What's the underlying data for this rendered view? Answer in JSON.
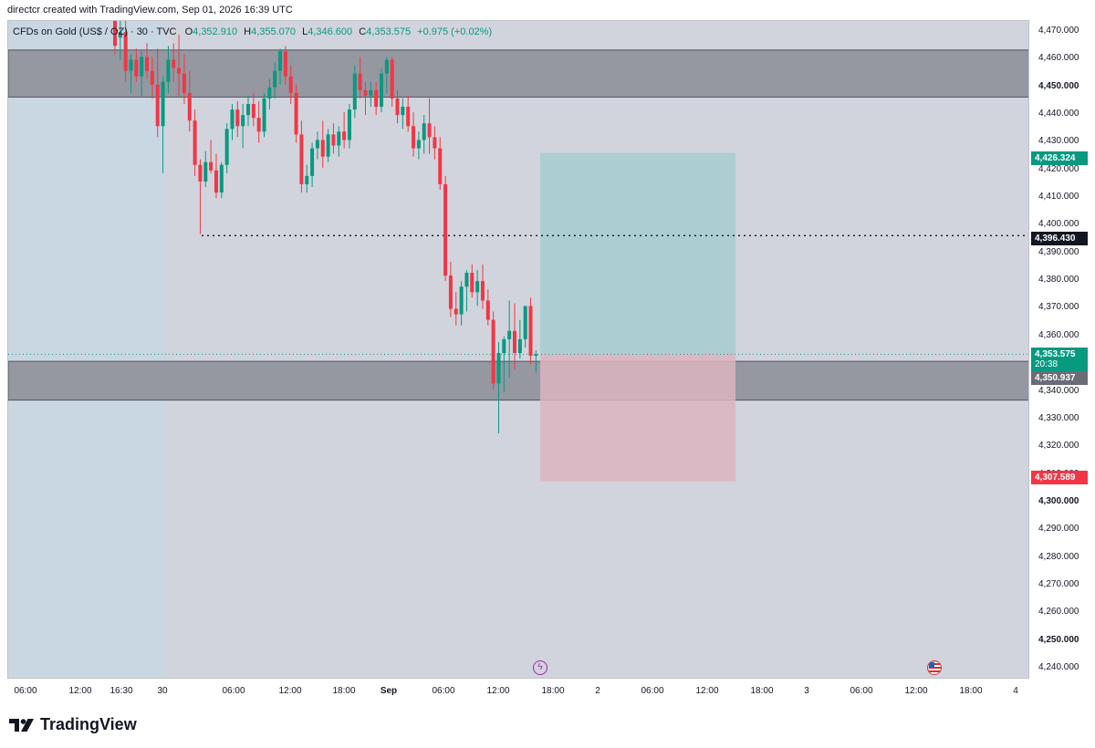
{
  "header": {
    "credit": "directcr created with TradingView.com, Sep 01, 2026 16:39 UTC"
  },
  "legend": {
    "symbol": "CFDs on Gold (US$ / OZ) · 30 · TVC",
    "open_label": "O",
    "open": "4,352.910",
    "high_label": "H",
    "high": "4,355.070",
    "low_label": "L",
    "low": "4,346.600",
    "close_label": "C",
    "close": "4,353.575",
    "change": "+0.975 (+0.02%)"
  },
  "price_axis": {
    "levels": [
      "4,470.000",
      "4,460.000",
      "4,450.000",
      "4,440.000",
      "4,430.000",
      "4,420.000",
      "4,410.000",
      "4,400.000",
      "4,390.000",
      "4,380.000",
      "4,370.000",
      "4,360.000",
      "4,340.000",
      "4,330.000",
      "4,320.000",
      "4,310.000",
      "4,300.000",
      "4,290.000",
      "4,280.000",
      "4,270.000",
      "4,260.000",
      "4,250.000",
      "4,240.000"
    ],
    "bold_levels": [
      "4,450.000",
      "4,300.000",
      "4,250.000"
    ]
  },
  "tags": {
    "target": "4,426.324",
    "dotted_level": "4,396.430",
    "current_price": "4,353.575",
    "countdown": "20:38",
    "zone_price": "4,350.937",
    "stop": "4,307.589"
  },
  "time_axis": {
    "labels": [
      "06:00",
      "12:00",
      "16:30",
      "30",
      "06:00",
      "12:00",
      "18:00",
      "Sep",
      "06:00",
      "12:00",
      "18:00",
      "2",
      "06:00",
      "12:00",
      "18:00",
      "3",
      "06:00",
      "12:00",
      "18:00",
      "4"
    ],
    "bold_labels": [
      "Sep"
    ]
  },
  "colors": {
    "up": "#089981",
    "down": "#f23645",
    "zone_fill": "#9598a1",
    "target_fill": "#a6cdd0",
    "stop_fill": "#dcb4bf",
    "session_shade": "#c9d7e2",
    "chart_bg": "#d1d4dc"
  },
  "events": {
    "flash_icon": "lightning-bolt-icon",
    "flag_icon": "us-flag-icon"
  },
  "brand": {
    "logo_text": "TradingView",
    "logo_icon": "tv-logo-icon"
  },
  "chart_data": {
    "type": "candlestick",
    "ylim": [
      4236,
      4474
    ],
    "x_unit": "30-minute bars",
    "reference_levels": {
      "supply_zone": [
        4446.5,
        4463.5
      ],
      "demand_zone": [
        4337,
        4351
      ],
      "target": 4426.324,
      "stop": 4307.589,
      "entry": 4353.575,
      "dotted_line": 4396.43
    },
    "candles": [
      {
        "o": 4475,
        "h": 4478,
        "l": 4462,
        "c": 4465
      },
      {
        "o": 4468,
        "h": 4476,
        "l": 4460,
        "c": 4470
      },
      {
        "o": 4470,
        "h": 4474,
        "l": 4452,
        "c": 4456
      },
      {
        "o": 4456,
        "h": 4462,
        "l": 4448,
        "c": 4460
      },
      {
        "o": 4460,
        "h": 4464,
        "l": 4452,
        "c": 4454
      },
      {
        "o": 4454,
        "h": 4463,
        "l": 4447,
        "c": 4461
      },
      {
        "o": 4461,
        "h": 4466,
        "l": 4453,
        "c": 4456
      },
      {
        "o": 4456,
        "h": 4461,
        "l": 4446,
        "c": 4451
      },
      {
        "o": 4451,
        "h": 4464,
        "l": 4432,
        "c": 4436
      },
      {
        "o": 4436,
        "h": 4454,
        "l": 4419,
        "c": 4452
      },
      {
        "o": 4452,
        "h": 4465,
        "l": 4448,
        "c": 4460
      },
      {
        "o": 4460,
        "h": 4466,
        "l": 4452,
        "c": 4457
      },
      {
        "o": 4457,
        "h": 4469,
        "l": 4447,
        "c": 4455
      },
      {
        "o": 4455,
        "h": 4462,
        "l": 4444,
        "c": 4448
      },
      {
        "o": 4448,
        "h": 4456,
        "l": 4434,
        "c": 4438
      },
      {
        "o": 4438,
        "h": 4442,
        "l": 4418,
        "c": 4422
      },
      {
        "o": 4422,
        "h": 4424,
        "l": 4397,
        "c": 4416
      },
      {
        "o": 4416,
        "h": 4427,
        "l": 4414,
        "c": 4423
      },
      {
        "o": 4423,
        "h": 4431,
        "l": 4419,
        "c": 4420
      },
      {
        "o": 4420,
        "h": 4426,
        "l": 4410,
        "c": 4412
      },
      {
        "o": 4412,
        "h": 4423,
        "l": 4410,
        "c": 4422
      },
      {
        "o": 4422,
        "h": 4437,
        "l": 4419,
        "c": 4435
      },
      {
        "o": 4435,
        "h": 4444,
        "l": 4431,
        "c": 4442
      },
      {
        "o": 4442,
        "h": 4445,
        "l": 4432,
        "c": 4436
      },
      {
        "o": 4436,
        "h": 4444,
        "l": 4428,
        "c": 4440
      },
      {
        "o": 4440,
        "h": 4447,
        "l": 4436,
        "c": 4444
      },
      {
        "o": 4444,
        "h": 4448,
        "l": 4436,
        "c": 4439
      },
      {
        "o": 4439,
        "h": 4445,
        "l": 4430,
        "c": 4434
      },
      {
        "o": 4434,
        "h": 4448,
        "l": 4432,
        "c": 4446
      },
      {
        "o": 4446,
        "h": 4453,
        "l": 4442,
        "c": 4450
      },
      {
        "o": 4450,
        "h": 4459,
        "l": 4446,
        "c": 4456
      },
      {
        "o": 4456,
        "h": 4464,
        "l": 4451,
        "c": 4463
      },
      {
        "o": 4463,
        "h": 4465,
        "l": 4451,
        "c": 4454
      },
      {
        "o": 4454,
        "h": 4458,
        "l": 4444,
        "c": 4448
      },
      {
        "o": 4448,
        "h": 4451,
        "l": 4430,
        "c": 4433
      },
      {
        "o": 4433,
        "h": 4438,
        "l": 4412,
        "c": 4415
      },
      {
        "o": 4415,
        "h": 4422,
        "l": 4412,
        "c": 4418
      },
      {
        "o": 4418,
        "h": 4430,
        "l": 4414,
        "c": 4428
      },
      {
        "o": 4428,
        "h": 4434,
        "l": 4424,
        "c": 4431
      },
      {
        "o": 4431,
        "h": 4438,
        "l": 4421,
        "c": 4425
      },
      {
        "o": 4425,
        "h": 4435,
        "l": 4423,
        "c": 4433
      },
      {
        "o": 4433,
        "h": 4437,
        "l": 4426,
        "c": 4429
      },
      {
        "o": 4429,
        "h": 4436,
        "l": 4425,
        "c": 4434
      },
      {
        "o": 4434,
        "h": 4441,
        "l": 4428,
        "c": 4431
      },
      {
        "o": 4431,
        "h": 4444,
        "l": 4428,
        "c": 4442
      },
      {
        "o": 4442,
        "h": 4458,
        "l": 4439,
        "c": 4455
      },
      {
        "o": 4455,
        "h": 4461,
        "l": 4446,
        "c": 4449
      },
      {
        "o": 4449,
        "h": 4452,
        "l": 4440,
        "c": 4447
      },
      {
        "o": 4447,
        "h": 4452,
        "l": 4443,
        "c": 4449
      },
      {
        "o": 4449,
        "h": 4452,
        "l": 4440,
        "c": 4443
      },
      {
        "o": 4443,
        "h": 4457,
        "l": 4441,
        "c": 4455
      },
      {
        "o": 4455,
        "h": 4461,
        "l": 4448,
        "c": 4460
      },
      {
        "o": 4460,
        "h": 4461,
        "l": 4443,
        "c": 4446
      },
      {
        "o": 4446,
        "h": 4449,
        "l": 4437,
        "c": 4440
      },
      {
        "o": 4440,
        "h": 4446,
        "l": 4435,
        "c": 4443
      },
      {
        "o": 4443,
        "h": 4447,
        "l": 4434,
        "c": 4436
      },
      {
        "o": 4436,
        "h": 4441,
        "l": 4425,
        "c": 4428
      },
      {
        "o": 4428,
        "h": 4434,
        "l": 4424,
        "c": 4431
      },
      {
        "o": 4431,
        "h": 4440,
        "l": 4426,
        "c": 4437
      },
      {
        "o": 4437,
        "h": 4446,
        "l": 4426,
        "c": 4432
      },
      {
        "o": 4432,
        "h": 4436,
        "l": 4424,
        "c": 4428
      },
      {
        "o": 4428,
        "h": 4432,
        "l": 4413,
        "c": 4415
      },
      {
        "o": 4415,
        "h": 4418,
        "l": 4380,
        "c": 4382
      },
      {
        "o": 4382,
        "h": 4387,
        "l": 4367,
        "c": 4370
      },
      {
        "o": 4370,
        "h": 4376,
        "l": 4364,
        "c": 4368
      },
      {
        "o": 4368,
        "h": 4380,
        "l": 4364,
        "c": 4378
      },
      {
        "o": 4378,
        "h": 4384,
        "l": 4369,
        "c": 4383
      },
      {
        "o": 4383,
        "h": 4386,
        "l": 4374,
        "c": 4376
      },
      {
        "o": 4376,
        "h": 4384,
        "l": 4371,
        "c": 4380
      },
      {
        "o": 4380,
        "h": 4386,
        "l": 4370,
        "c": 4373
      },
      {
        "o": 4373,
        "h": 4377,
        "l": 4364,
        "c": 4366
      },
      {
        "o": 4366,
        "h": 4369,
        "l": 4341,
        "c": 4343
      },
      {
        "o": 4343,
        "h": 4358,
        "l": 4325,
        "c": 4354
      },
      {
        "o": 4354,
        "h": 4360,
        "l": 4340,
        "c": 4359
      },
      {
        "o": 4359,
        "h": 4373,
        "l": 4345,
        "c": 4362
      },
      {
        "o": 4362,
        "h": 4372,
        "l": 4348,
        "c": 4354
      },
      {
        "o": 4354,
        "h": 4366,
        "l": 4352,
        "c": 4359
      },
      {
        "o": 4359,
        "h": 4370,
        "l": 4356,
        "c": 4371
      },
      {
        "o": 4371,
        "h": 4374,
        "l": 4350,
        "c": 4353
      },
      {
        "o": 4353,
        "h": 4355,
        "l": 4347,
        "c": 4353.575
      }
    ]
  }
}
